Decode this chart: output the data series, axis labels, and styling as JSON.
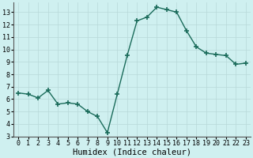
{
  "x": [
    0,
    1,
    2,
    3,
    4,
    5,
    6,
    7,
    8,
    9,
    10,
    11,
    12,
    13,
    14,
    15,
    16,
    17,
    18,
    19,
    20,
    21,
    22,
    23
  ],
  "y": [
    6.5,
    6.4,
    6.1,
    6.7,
    5.6,
    5.7,
    5.6,
    5.0,
    4.6,
    3.3,
    6.4,
    9.5,
    12.3,
    12.6,
    13.4,
    13.2,
    13.0,
    11.5,
    10.2,
    9.7,
    9.6,
    9.5,
    8.8,
    8.9
  ],
  "line_color": "#1a6b5a",
  "marker": "+",
  "marker_size": 4.0,
  "marker_lw": 1.2,
  "background_color": "#cff0f0",
  "grid_color": "#b8d8d8",
  "xlabel": "Humidex (Indice chaleur)",
  "xlabel_fontsize": 7.5,
  "tick_fontsize": 6.0,
  "xlim": [
    -0.5,
    23.5
  ],
  "ylim": [
    3,
    13.8
  ],
  "yticks": [
    3,
    4,
    5,
    6,
    7,
    8,
    9,
    10,
    11,
    12,
    13
  ],
  "xticks": [
    0,
    1,
    2,
    3,
    4,
    5,
    6,
    7,
    8,
    9,
    10,
    11,
    12,
    13,
    14,
    15,
    16,
    17,
    18,
    19,
    20,
    21,
    22,
    23
  ],
  "linewidth": 1.0
}
